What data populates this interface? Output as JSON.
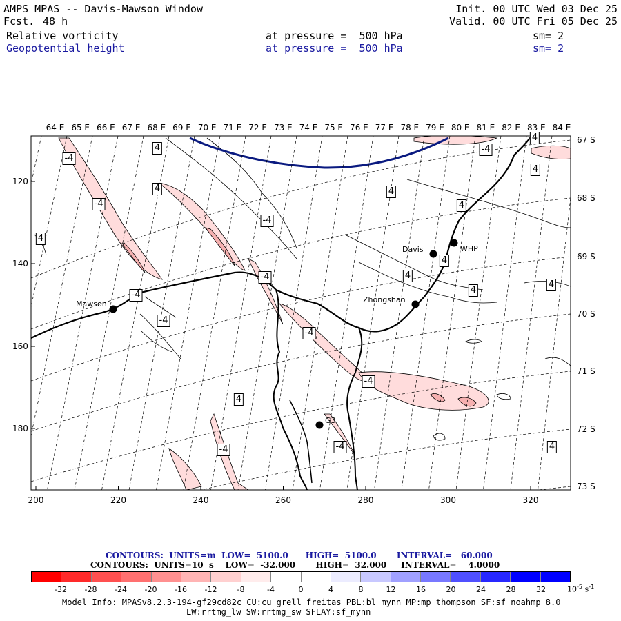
{
  "header": {
    "title": "AMPS MPAS -- Davis-Mawson Window",
    "fcst_label": "Fcst.",
    "fcst_value": "48 h",
    "init": "Init. 00 UTC Wed 03 Dec 25",
    "valid": "Valid. 00 UTC Fri 05 Dec 25",
    "field1_name": "Relative vorticity",
    "field1_level": "at pressure =  500 hPa",
    "field1_sm": "sm= 2",
    "field2_name": "Geopotential height",
    "field2_level": "at pressure =  500 hPa",
    "field2_sm": "sm= 2"
  },
  "axes": {
    "lon_labels": [
      "64 E",
      "65 E",
      "66 E",
      "67 E",
      "68 E",
      "69 E",
      "70 E",
      "71 E",
      "72 E",
      "73 E",
      "74 E",
      "75 E",
      "76 E",
      "77 E",
      "78 E",
      "79 E",
      "80 E",
      "81 E",
      "82 E",
      "83 E",
      "84 E"
    ],
    "lat_labels": [
      "67 S",
      "68 S",
      "69 S",
      "70 S",
      "71 S",
      "72 S",
      "73 S"
    ],
    "y_ticks": [
      "120",
      "140",
      "160",
      "180"
    ],
    "x_ticks": [
      "200",
      "220",
      "240",
      "260",
      "280",
      "300",
      "320"
    ]
  },
  "stations": [
    {
      "name": "Mawson",
      "label": "Mawson"
    },
    {
      "name": "Zhongshan",
      "label": "Zhongshan"
    },
    {
      "name": "Davis",
      "label": "Davis"
    },
    {
      "name": "WHP",
      "label": "WHP"
    },
    {
      "name": "G3",
      "label": "G3"
    }
  ],
  "contour_labels": [
    "-4",
    "4",
    "4",
    "-4",
    "-4",
    "4",
    "-4",
    "4",
    "-4",
    "4",
    "-4",
    "-4",
    "-4",
    "4",
    "4",
    "4",
    "4",
    "4",
    "4",
    "-4",
    "-4",
    "4",
    "-4",
    "4"
  ],
  "contour_info": {
    "line1": "CONTOURS:  UNITS=m  LOW=  5100.0      HIGH=  5100.0       INTERVAL=   60.000",
    "line2": "CONTOURS:  UNITS=10  s    LOW=  -32.000       HIGH=  32.000     INTERVAL=    4.0000"
  },
  "colorbar": {
    "labels": [
      "-32",
      "-28",
      "-24",
      "-20",
      "-16",
      "-12",
      "-8",
      "-4",
      "0",
      "4",
      "8",
      "12",
      "16",
      "20",
      "24",
      "28",
      "32"
    ],
    "unit": "10",
    "unit_exp": "-5",
    "unit_suffix": "s",
    "unit_suffix_exp": "-1",
    "colors": [
      "#ff0000",
      "#ff2a2a",
      "#ff5050",
      "#ff7070",
      "#ff9090",
      "#ffb4b4",
      "#ffd0d0",
      "#ffecec",
      "#ffffff",
      "#ffffff",
      "#ececff",
      "#c8c8ff",
      "#a0a0ff",
      "#7878ff",
      "#5050ff",
      "#2828ff",
      "#0000ff",
      "#0000ff"
    ]
  },
  "model_info": {
    "line1": "Model Info: MPASv8.2.3-194-gf29cd82c CU:cu_grell_freitas PBL:bl_mynn MP:mp_thompson SF:sf_noahmp 8.0",
    "line2": "LW:rrtmg_lw SW:rrtmg_sw SFLAY:sf_mynn"
  },
  "colors": {
    "geopotential_line": "#0a1a80",
    "vorticity_fill": "#ffd6d6",
    "vorticity_fill_strong": "#f4a8a8",
    "coast": "#000000"
  }
}
